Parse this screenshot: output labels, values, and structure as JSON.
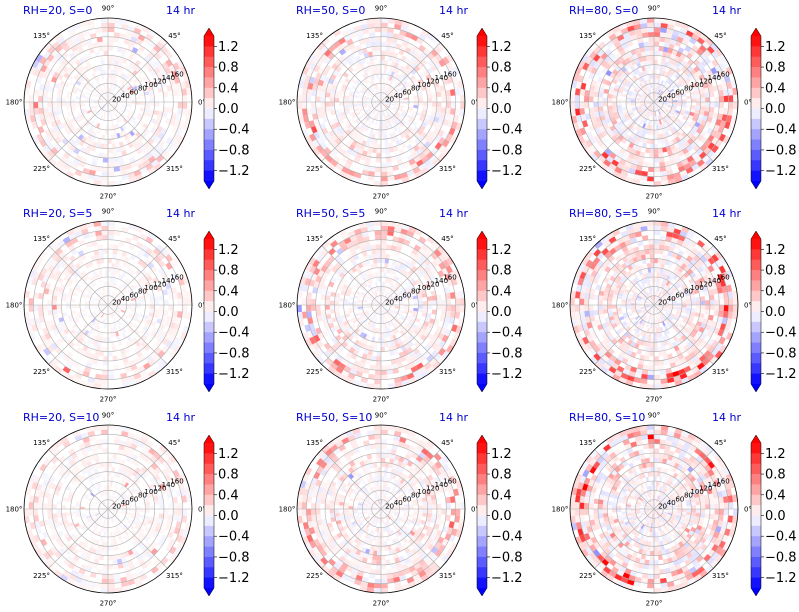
{
  "colors": {
    "title": "#0000cc",
    "grid": "#b0b0b0",
    "positive": "#ff0000",
    "negative": "#0000ff"
  },
  "chart_data": [
    {
      "type": "heatmap",
      "projection": "polar",
      "title": "RH=20, S=0",
      "time_label": "14 hr",
      "angle_ticks": [
        "0°",
        "45°",
        "90°",
        "135°",
        "180°",
        "225°",
        "270°",
        "315°"
      ],
      "radial_ticks": [
        "20",
        "40",
        "60",
        "80",
        "100",
        "120",
        "140",
        "160"
      ],
      "rmax": 180,
      "colorbar": {
        "ticks": [
          "1.2",
          "0.8",
          "0.4",
          "0.0",
          "−0.4",
          "−0.8",
          "−1.2"
        ],
        "range": [
          -1.4,
          1.4
        ],
        "colormap": "bwr",
        "extend": "both"
      },
      "intensity": 0.35,
      "ring_strength": 0.35,
      "seed": 11
    },
    {
      "type": "heatmap",
      "projection": "polar",
      "title": "RH=50, S=0",
      "time_label": "14 hr",
      "angle_ticks": [
        "0°",
        "45°",
        "90°",
        "135°",
        "180°",
        "225°",
        "270°",
        "315°"
      ],
      "radial_ticks": [
        "20",
        "40",
        "60",
        "80",
        "100",
        "120",
        "140",
        "160"
      ],
      "rmax": 180,
      "colorbar": {
        "ticks": [
          "1.2",
          "0.8",
          "0.4",
          "0.0",
          "−0.4",
          "−0.8",
          "−1.2"
        ],
        "range": [
          -1.4,
          1.4
        ],
        "colormap": "bwr",
        "extend": "both"
      },
      "intensity": 0.45,
      "ring_strength": 0.55,
      "seed": 23
    },
    {
      "type": "heatmap",
      "projection": "polar",
      "title": "RH=80, S=0",
      "time_label": "14 hr",
      "angle_ticks": [
        "0°",
        "45°",
        "90°",
        "135°",
        "180°",
        "225°",
        "270°",
        "315°"
      ],
      "radial_ticks": [
        "20",
        "40",
        "60",
        "80",
        "100",
        "120",
        "140",
        "160"
      ],
      "rmax": 180,
      "colorbar": {
        "ticks": [
          "1.2",
          "0.8",
          "0.4",
          "0.0",
          "−0.4",
          "−0.8",
          "−1.2"
        ],
        "range": [
          -1.4,
          1.4
        ],
        "colormap": "bwr",
        "extend": "both"
      },
      "intensity": 0.75,
      "ring_strength": 0.9,
      "seed": 37
    },
    {
      "type": "heatmap",
      "projection": "polar",
      "title": "RH=20, S=5",
      "time_label": "14 hr",
      "angle_ticks": [
        "0°",
        "45°",
        "90°",
        "135°",
        "180°",
        "225°",
        "270°",
        "315°"
      ],
      "radial_ticks": [
        "20",
        "40",
        "60",
        "80",
        "100",
        "120",
        "140",
        "160"
      ],
      "rmax": 180,
      "colorbar": {
        "ticks": [
          "1.2",
          "0.8",
          "0.4",
          "0.0",
          "−0.4",
          "−0.8",
          "−1.2"
        ],
        "range": [
          -1.4,
          1.4
        ],
        "colormap": "bwr",
        "extend": "both"
      },
      "intensity": 0.3,
      "ring_strength": 0.3,
      "seed": 41
    },
    {
      "type": "heatmap",
      "projection": "polar",
      "title": "RH=50, S=5",
      "time_label": "14 hr",
      "angle_ticks": [
        "0°",
        "45°",
        "90°",
        "135°",
        "180°",
        "225°",
        "270°",
        "315°"
      ],
      "radial_ticks": [
        "20",
        "40",
        "60",
        "80",
        "100",
        "120",
        "140",
        "160"
      ],
      "rmax": 180,
      "colorbar": {
        "ticks": [
          "1.2",
          "0.8",
          "0.4",
          "0.0",
          "−0.4",
          "−0.8",
          "−1.2"
        ],
        "range": [
          -1.4,
          1.4
        ],
        "colormap": "bwr",
        "extend": "both"
      },
      "intensity": 0.45,
      "ring_strength": 0.6,
      "seed": 53
    },
    {
      "type": "heatmap",
      "projection": "polar",
      "title": "RH=80, S=5",
      "time_label": "14 hr",
      "angle_ticks": [
        "0°",
        "45°",
        "90°",
        "135°",
        "180°",
        "225°",
        "270°",
        "315°"
      ],
      "radial_ticks": [
        "20",
        "40",
        "60",
        "80",
        "100",
        "120",
        "140",
        "160"
      ],
      "rmax": 180,
      "colorbar": {
        "ticks": [
          "1.2",
          "0.8",
          "0.4",
          "0.0",
          "−0.4",
          "−0.8",
          "−1.2"
        ],
        "range": [
          -1.4,
          1.4
        ],
        "colormap": "bwr",
        "extend": "both"
      },
      "intensity": 0.7,
      "ring_strength": 0.95,
      "seed": 67
    },
    {
      "type": "heatmap",
      "projection": "polar",
      "title": "RH=20, S=10",
      "time_label": "14 hr",
      "angle_ticks": [
        "0°",
        "45°",
        "90°",
        "135°",
        "180°",
        "225°",
        "270°",
        "315°"
      ],
      "radial_ticks": [
        "20",
        "40",
        "60",
        "80",
        "100",
        "120",
        "140",
        "160"
      ],
      "rmax": 180,
      "colorbar": {
        "ticks": [
          "1.2",
          "0.8",
          "0.4",
          "0.0",
          "−0.4",
          "−0.8",
          "−1.2"
        ],
        "range": [
          -1.4,
          1.4
        ],
        "colormap": "bwr",
        "extend": "both"
      },
      "intensity": 0.3,
      "ring_strength": 0.3,
      "seed": 71
    },
    {
      "type": "heatmap",
      "projection": "polar",
      "title": "RH=50, S=10",
      "time_label": "14 hr",
      "angle_ticks": [
        "0°",
        "45°",
        "90°",
        "135°",
        "180°",
        "225°",
        "270°",
        "315°"
      ],
      "radial_ticks": [
        "20",
        "40",
        "60",
        "80",
        "100",
        "120",
        "140",
        "160"
      ],
      "rmax": 180,
      "colorbar": {
        "ticks": [
          "1.2",
          "0.8",
          "0.4",
          "0.0",
          "−0.4",
          "−0.8",
          "−1.2"
        ],
        "range": [
          -1.4,
          1.4
        ],
        "colormap": "bwr",
        "extend": "both"
      },
      "intensity": 0.45,
      "ring_strength": 0.6,
      "seed": 83
    },
    {
      "type": "heatmap",
      "projection": "polar",
      "title": "RH=80, S=10",
      "time_label": "14 hr",
      "angle_ticks": [
        "0°",
        "45°",
        "90°",
        "135°",
        "180°",
        "225°",
        "270°",
        "315°"
      ],
      "radial_ticks": [
        "20",
        "40",
        "60",
        "80",
        "100",
        "120",
        "140",
        "160"
      ],
      "rmax": 180,
      "colorbar": {
        "ticks": [
          "1.2",
          "0.8",
          "0.4",
          "0.0",
          "−0.4",
          "−0.8",
          "−1.2"
        ],
        "range": [
          -1.4,
          1.4
        ],
        "colormap": "bwr",
        "extend": "both"
      },
      "intensity": 0.75,
      "ring_strength": 1.0,
      "seed": 97
    }
  ]
}
